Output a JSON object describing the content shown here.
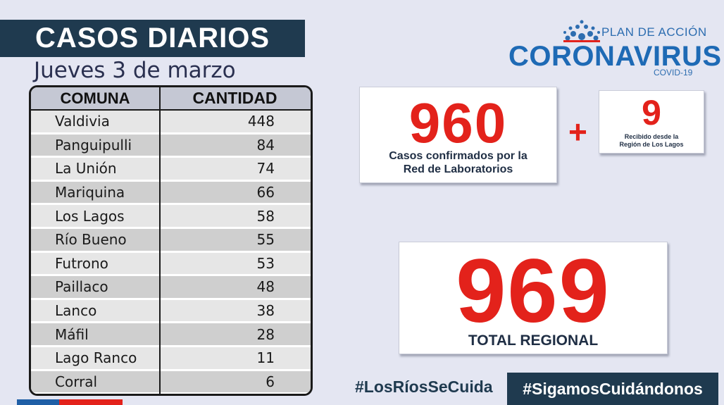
{
  "header": {
    "title": "CASOS DIARIOS",
    "date": "Jueves 3 de marzo"
  },
  "logo": {
    "plan": "PLAN DE ACCIÓN",
    "main": "CORONAVIRUS",
    "sub": "COVID-19",
    "icon": "sun-arc-icon"
  },
  "table": {
    "headers": {
      "comuna": "COMUNA",
      "cantidad": "CANTIDAD"
    },
    "rows": [
      {
        "comuna": "Valdivia",
        "cantidad": "448"
      },
      {
        "comuna": "Panguipulli",
        "cantidad": "84"
      },
      {
        "comuna": "La Unión",
        "cantidad": "74"
      },
      {
        "comuna": "Mariquina",
        "cantidad": "66"
      },
      {
        "comuna": "Los Lagos",
        "cantidad": "58"
      },
      {
        "comuna": "Río Bueno",
        "cantidad": "55"
      },
      {
        "comuna": "Futrono",
        "cantidad": "53"
      },
      {
        "comuna": "Paillaco",
        "cantidad": "48"
      },
      {
        "comuna": "Lanco",
        "cantidad": "38"
      },
      {
        "comuna": "Máfil",
        "cantidad": "28"
      },
      {
        "comuna": "Lago Ranco",
        "cantidad": "11"
      },
      {
        "comuna": "Corral",
        "cantidad": "6"
      }
    ]
  },
  "confirmed": {
    "value": "960",
    "caption_line1": "Casos confirmados  por la",
    "caption_line2": "Red de Laboratorios"
  },
  "plus_sign": "+",
  "received": {
    "value": "9",
    "caption_line1": "Recibido desde la",
    "caption_line2": "Región de Los Lagos"
  },
  "total": {
    "value": "969",
    "caption": "TOTAL REGIONAL"
  },
  "footer": {
    "hashtag_1": "#LosRíosSeCuida",
    "hashtag_2": "#SigamosCuidándonos"
  },
  "colors": {
    "navy": "#1f3a4f",
    "red": "#e3221b",
    "blue": "#1e6ab5",
    "background": "#e4e6f2"
  }
}
